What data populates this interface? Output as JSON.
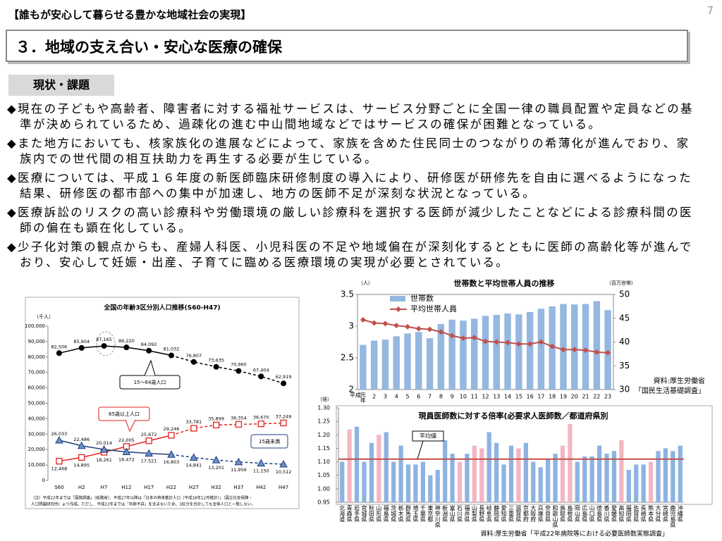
{
  "header": {
    "theme": "【誰もが安心して暮らせる豊かな地域社会の実現】",
    "page": "7",
    "title": "３．地域の支え合い・安心な医療の確保",
    "section": "現状・課題"
  },
  "bullets": [
    "◆現在の子どもや高齢者、障害者に対する福祉サービスは、サービス分野ごとに全国一律の職員配置や定員などの基準が決められているため、過疎化の進む中山間地域などではサービスの確保が困難となっている。",
    "◆また地方においても、核家族化の進展などによって、家族を含めた住民同士のつながりの希薄化が進んでおり、家族内での世代間の相互扶助力を再生する必要が生じている。",
    "◆医療については、平成１６年度の新医師臨床研修制度の導入により、研修医が研修先を自由に選べるようになった結果、研修医の都市部への集中が加速し、地方の医師不足が深刻な状況となっている。",
    "◆医療訴訟のリスクの高い診療科や労働環境の厳しい診療科を選択する医師が減少したことなどによる診療科間の医師の偏在も顕在化している。",
    "◆少子化対策の観点からも、産婦人科医、小児科医の不足や地域偏在が深刻化するとともに医師の高齢化等が進んでおり、安心して妊娠・出産、子育てに臨める医療環境の実現が必要とされている。"
  ],
  "chart_data": [
    {
      "type": "line",
      "title": "全国の年齢3区分別人口推移(S60-H47)",
      "y_unit": "（千人）",
      "categories": [
        "S60",
        "H2",
        "H7",
        "H12",
        "H17",
        "H22",
        "H27",
        "H32",
        "H37",
        "H42",
        "H47"
      ],
      "ylim": [
        0,
        100000
      ],
      "yticks": [
        0,
        {
          "value": 10000,
          "label": "10,000"
        },
        {
          "value": 20000,
          "label": "20,000"
        },
        {
          "value": 30000,
          "label": "30,000"
        },
        {
          "value": 40000,
          "label": "40,000"
        },
        {
          "value": 50000,
          "label": "50,000"
        },
        {
          "value": 60000,
          "label": "60,000"
        },
        {
          "value": 70000,
          "label": "70,000"
        },
        {
          "value": 80000,
          "label": "80,000"
        },
        {
          "value": 90000,
          "label": "90,000"
        },
        {
          "value": 100000,
          "label": "100,000"
        }
      ],
      "dashed_from": "H27",
      "series": [
        {
          "name": "15〜64歳人口",
          "color": "#000000",
          "marker": "circle",
          "values": [
            82506,
            85904,
            87165,
            86220,
            84092,
            81032,
            76807,
            73635,
            70960,
            67404,
            62919
          ],
          "value_labels": [
            "82,506",
            "85,904",
            "87,165",
            "86,220",
            "84,092",
            "81,032",
            "76,807",
            "73,635",
            "70,960",
            "67,404",
            "62,919"
          ]
        },
        {
          "name": "65歳以上人口",
          "color": "#e3211c",
          "marker": "square",
          "values": [
            12468,
            14895,
            18261,
            22005,
            25672,
            29246,
            33781,
            35899,
            36354,
            36670,
            37249
          ],
          "value_labels": [
            "12,468",
            "14,895",
            "18,261",
            "22,005",
            "25,672",
            "29,246",
            "33,781",
            "35,899",
            "36,354",
            "36,670",
            "37,249"
          ]
        },
        {
          "name": "15歳未満",
          "color": "#1f3f7a",
          "marker": "triangle",
          "values": [
            26033,
            22486,
            20014,
            18472,
            17521,
            16803,
            14841,
            13201,
            11956,
            11150,
            10512
          ],
          "value_labels": [
            "26,033",
            "22,486",
            "20,014",
            "18,472",
            "17,521",
            "16,803",
            "14,841",
            "13,201",
            "11,956",
            "11,150",
            "10,512"
          ]
        }
      ],
      "note": [
        "（注）平成22年までは「国勢調査」（総務省）、平成27年以降は「日本の将来推計人口（平成18年12月推計）」（国立社会保障・",
        "人口問題研究所）より作成。ただし、平成22年までは「年齢不詳」を含まないため、3区分を合計しても全体人口と一致しない。"
      ]
    },
    {
      "type": "bar_line",
      "title": "世帯数と平均世帯人員の推移",
      "y_unit": "（人）",
      "y2_unit": "（百万世帯）",
      "x_label": "平成",
      "categories": [
        "元年",
        "2",
        "3",
        "4",
        "5",
        "6",
        "7",
        "8",
        "9",
        "10",
        "11",
        "12",
        "13",
        "14",
        "15",
        "16",
        "17",
        "18",
        "19",
        "20",
        "21",
        "22",
        "23"
      ],
      "ylim": [
        2,
        3.5
      ],
      "yticks": [
        2,
        2.5,
        3,
        3.5
      ],
      "y2lim": [
        30,
        50
      ],
      "y2ticks": [
        30,
        35,
        40,
        45,
        50
      ],
      "series": [
        {
          "name": "世帯数",
          "type": "bar",
          "axis": "y2",
          "color": "#95b8e0",
          "values": [
            39.4,
            40.3,
            40.5,
            41.2,
            41.8,
            42.1,
            40.8,
            43.8,
            44.7,
            44.5,
            44.9,
            45.5,
            45.7,
            46.0,
            45.8,
            46.3,
            47.0,
            47.5,
            48.0,
            47.9,
            48.0,
            48.6,
            46.7
          ]
        },
        {
          "name": "平均世帯人員",
          "type": "line",
          "color": "#c0504d",
          "values": [
            3.1,
            3.05,
            3.04,
            3.01,
            2.99,
            2.96,
            2.95,
            2.91,
            2.85,
            2.81,
            2.82,
            2.76,
            2.75,
            2.74,
            2.72,
            2.72,
            2.75,
            2.68,
            2.63,
            2.63,
            2.62,
            2.59,
            2.58
          ]
        }
      ],
      "source": [
        "資料:厚生労働省",
        "「国民生活基礎調査」"
      ]
    },
    {
      "type": "bar",
      "title": "現員医師数に対する倍率(必要求人医師数／都道府県別",
      "y_unit": "（倍）",
      "categories": [
        "北海道",
        "青森県",
        "岩手県",
        "宮城県",
        "秋田県",
        "山形県",
        "福島県",
        "茨城県",
        "栃木県",
        "群馬県",
        "埼玉県",
        "千葉県",
        "東京都",
        "神奈川県",
        "新潟県",
        "富山県",
        "石川県",
        "福井県",
        "山梨県",
        "長野県",
        "岐阜県",
        "静岡県",
        "愛知県",
        "三重県",
        "滋賀県",
        "京都府",
        "大阪府",
        "兵庫県",
        "奈良県",
        "和歌山県",
        "鳥取県",
        "島根県",
        "岡山県",
        "広島県",
        "山口県",
        "徳島県",
        "香川県",
        "愛媛県",
        "高知県",
        "福岡県",
        "佐賀県",
        "長崎県",
        "熊本県",
        "大分県",
        "宮崎県",
        "鹿児島県",
        "沖縄県"
      ],
      "values": [
        1.1,
        1.22,
        1.23,
        1.1,
        1.17,
        1.2,
        1.21,
        1.1,
        1.16,
        1.09,
        1.09,
        1.1,
        1.05,
        1.07,
        1.18,
        1.13,
        1.1,
        1.13,
        1.16,
        1.15,
        1.21,
        1.17,
        1.09,
        1.16,
        1.15,
        1.17,
        1.1,
        1.08,
        1.11,
        1.13,
        1.16,
        1.24,
        1.1,
        1.12,
        1.12,
        1.16,
        1.13,
        1.14,
        1.18,
        1.07,
        1.09,
        1.09,
        1.1,
        1.14,
        1.15,
        1.14,
        1.16
      ],
      "colors": [
        "#8db3e2",
        "#f4b6c2",
        "#8db3e2",
        "#8db3e2",
        "#8db3e2",
        "#f4b6c2",
        "#8db3e2",
        "#8db3e2",
        "#8db3e2",
        "#8db3e2",
        "#8db3e2",
        "#8db3e2",
        "#8db3e2",
        "#8db3e2",
        "#8db3e2",
        "#8db3e2",
        "#f4b6c2",
        "#8db3e2",
        "#f4b6c2",
        "#f4b6c2",
        "#8db3e2",
        "#8db3e2",
        "#8db3e2",
        "#8db3e2",
        "#f4b6c2",
        "#8db3e2",
        "#8db3e2",
        "#8db3e2",
        "#8db3e2",
        "#8db3e2",
        "#f4b6c2",
        "#f4b6c2",
        "#8db3e2",
        "#8db3e2",
        "#8db3e2",
        "#8db3e2",
        "#8db3e2",
        "#8db3e2",
        "#f4b6c2",
        "#8db3e2",
        "#8db3e2",
        "#8db3e2",
        "#f4b6c2",
        "#8db3e2",
        "#8db3e2",
        "#8db3e2",
        "#8db3e2"
      ],
      "ylim": [
        0.95,
        1.3
      ],
      "yticks": [
        0.95,
        {
          "value": 1,
          "label": "1.00"
        },
        1.05,
        {
          "value": 1.1,
          "label": "1.10"
        },
        1.15,
        {
          "value": 1.2,
          "label": "1.20"
        },
        1.25,
        {
          "value": 1.3,
          "label": "1.30"
        }
      ],
      "reference_line": {
        "label": "平均値",
        "value": 1.11,
        "color": "#c0504d"
      },
      "source": "資料:厚生労働省「平成22年病院等における必要医師数実態調査」"
    }
  ]
}
